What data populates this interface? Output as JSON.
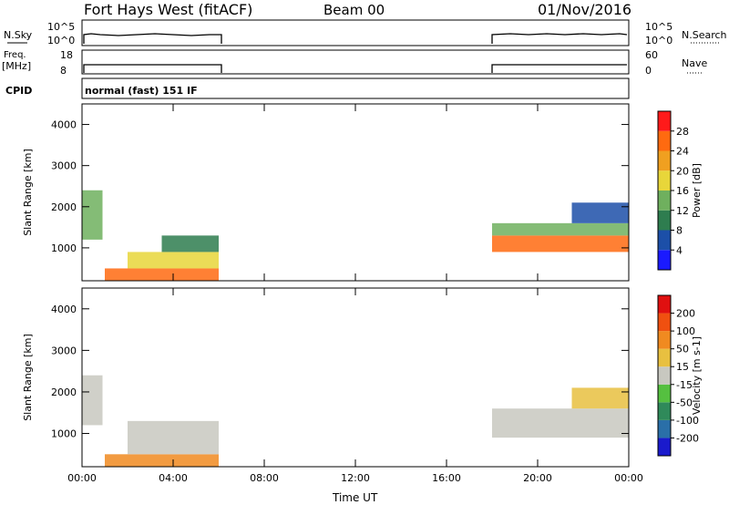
{
  "header": {
    "station": "Fort Hays West (fitACF)",
    "beam": "Beam 00",
    "date": "01/Nov/2016"
  },
  "top_panels": {
    "nsky_label": "N.Sky",
    "nsky_ticks": [
      "10^5",
      "10^0"
    ],
    "nsearch_label": "N.Search",
    "nsearch_ticks": [
      "10^5",
      "10^0"
    ],
    "freq_label_1": "Freq.",
    "freq_label_2": "[MHz]",
    "freq_ticks": [
      "18",
      "8"
    ],
    "nave_label": "Nave",
    "nave_ticks": [
      "60",
      "0"
    ],
    "cpid_label": "CPID",
    "cpid_value": "normal (fast) 151 IF"
  },
  "chart_data": [
    {
      "type": "heatmap",
      "panel": "power",
      "ylabel": "Slant Range [km]",
      "yticks": [
        "1000",
        "2000",
        "3000",
        "4000"
      ],
      "xticks": [
        "00:00",
        "04:00",
        "08:00",
        "12:00",
        "16:00",
        "20:00",
        "00:00"
      ],
      "xlabel": "Time UT",
      "colorbar_label": "Power [dB]",
      "colorbar_ticks": [
        "4",
        "8",
        "12",
        "16",
        "20",
        "24",
        "28"
      ],
      "colorbar_colors": [
        "#1a1aff",
        "#1c4fa8",
        "#2e7d4f",
        "#6fb05e",
        "#e8d63a",
        "#f0a020",
        "#ff6a10",
        "#ff1a1a"
      ],
      "ylim": [
        200,
        4500
      ],
      "xlim_hours": [
        0,
        24
      ],
      "data_blocks": [
        {
          "t0": 0.0,
          "t1": 0.9,
          "r0": 1200,
          "r1": 2400,
          "level": 3
        },
        {
          "t0": 1.0,
          "t1": 6.0,
          "r0": 200,
          "r1": 500,
          "level": 6
        },
        {
          "t0": 2.0,
          "t1": 6.0,
          "r0": 500,
          "r1": 900,
          "level": 4
        },
        {
          "t0": 3.5,
          "t1": 6.0,
          "r0": 900,
          "r1": 1300,
          "level": 2
        },
        {
          "t0": 18.0,
          "t1": 24.0,
          "r0": 900,
          "r1": 1300,
          "level": 6
        },
        {
          "t0": 18.0,
          "t1": 24.0,
          "r0": 1300,
          "r1": 1600,
          "level": 3
        },
        {
          "t0": 21.5,
          "t1": 24.0,
          "r0": 1600,
          "r1": 2100,
          "level": 1
        }
      ]
    },
    {
      "type": "heatmap",
      "panel": "velocity",
      "ylabel": "Slant Range [km]",
      "yticks": [
        "1000",
        "2000",
        "3000",
        "4000"
      ],
      "xticks": [
        "00:00",
        "04:00",
        "08:00",
        "12:00",
        "16:00",
        "20:00",
        "00:00"
      ],
      "xlabel": "Time UT",
      "colorbar_label": "Velocity [m s-1]",
      "colorbar_ticks": [
        "200",
        "100",
        "50",
        "15",
        "-15",
        "-50",
        "-100",
        "-200"
      ],
      "colorbar_colors": [
        "#1a1acc",
        "#2a6fa8",
        "#2f8a5a",
        "#55c040",
        "#c8c8c0",
        "#e8c040",
        "#f08a20",
        "#f05010",
        "#e01010"
      ],
      "ylim": [
        200,
        4500
      ],
      "xlim_hours": [
        0,
        24
      ],
      "data_blocks": [
        {
          "t0": 0.0,
          "t1": 0.9,
          "r0": 1200,
          "r1": 2400,
          "level": 4
        },
        {
          "t0": 1.0,
          "t1": 6.0,
          "r0": 200,
          "r1": 500,
          "level": 6
        },
        {
          "t0": 2.0,
          "t1": 6.0,
          "r0": 500,
          "r1": 1300,
          "level": 4
        },
        {
          "t0": 18.0,
          "t1": 24.0,
          "r0": 900,
          "r1": 1600,
          "level": 4
        },
        {
          "t0": 21.5,
          "t1": 24.0,
          "r0": 1600,
          "r1": 2100,
          "level": 5
        }
      ]
    }
  ]
}
